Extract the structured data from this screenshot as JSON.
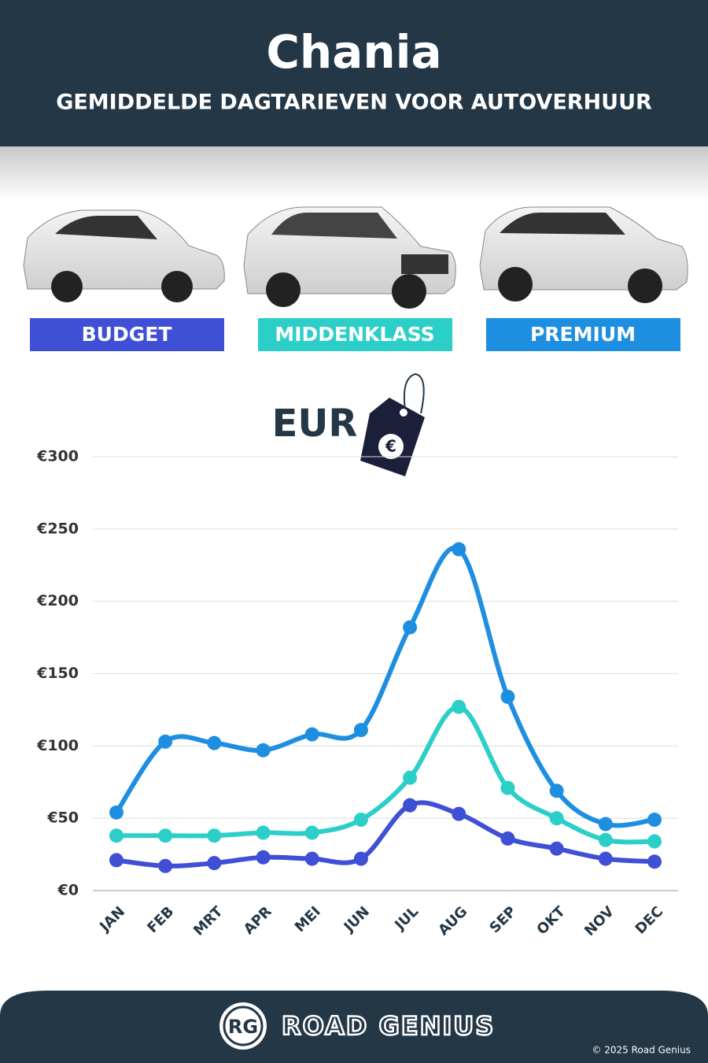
{
  "header": {
    "title": "Chania",
    "subtitle": "GEMIDDELDE DAGTARIEVEN VOOR AUTOVERHUUR"
  },
  "chart_data": {
    "type": "line",
    "currency_label": "EUR",
    "categories": [
      "JAN",
      "FEB",
      "MRT",
      "APR",
      "MEI",
      "JUN",
      "JUL",
      "AUG",
      "SEP",
      "OKT",
      "NOV",
      "DEC"
    ],
    "series": [
      {
        "name": "BUDGET",
        "color": "#3f4fd6",
        "values": [
          21,
          17,
          19,
          23,
          22,
          22,
          59,
          53,
          36,
          29,
          22,
          20
        ]
      },
      {
        "name": "MIDDENKLASS",
        "color": "#2ccfc8",
        "values": [
          38,
          38,
          38,
          40,
          40,
          49,
          78,
          127,
          71,
          50,
          35,
          34
        ]
      },
      {
        "name": "PREMIUM",
        "color": "#1e8fe0",
        "values": [
          54,
          103,
          102,
          97,
          108,
          111,
          182,
          236,
          134,
          69,
          46,
          49
        ]
      }
    ],
    "ylim": [
      0,
      300
    ],
    "yticks": [
      {
        "value": 0,
        "label": "€0"
      },
      {
        "value": 50,
        "label": "€50"
      },
      {
        "value": 100,
        "label": "€100"
      },
      {
        "value": 150,
        "label": "€150"
      },
      {
        "value": 200,
        "label": "€200"
      },
      {
        "value": 250,
        "label": "€250"
      },
      {
        "value": 300,
        "label": "€300"
      }
    ],
    "grid": true
  },
  "footer": {
    "logo": "RG",
    "brand": "ROAD GENIUS",
    "copyright": "© 2025 Road Genius"
  }
}
